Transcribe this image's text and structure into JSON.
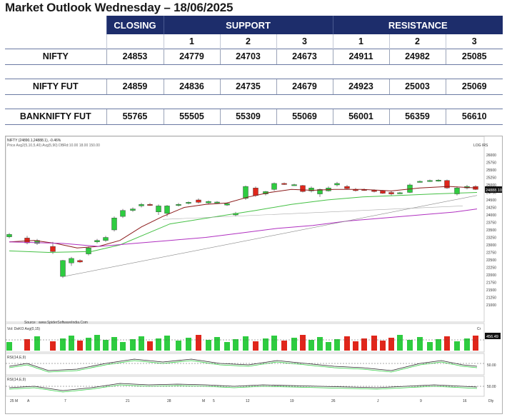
{
  "title": "Market Outlook Wednesday – 18/06/2025",
  "table": {
    "headers": {
      "closing": "CLOSING",
      "support": "SUPPORT",
      "resistance": "RESISTANCE"
    },
    "levels": [
      "1",
      "2",
      "3"
    ],
    "rows": [
      {
        "name": "NIFTY",
        "closing": "24853",
        "s1": "24779",
        "s2": "24703",
        "s3": "24673",
        "r1": "24911",
        "r2": "24982",
        "r3": "25085"
      },
      {
        "name": "NIFTY FUT",
        "closing": "24859",
        "s1": "24836",
        "s2": "24735",
        "s3": "24679",
        "r1": "24923",
        "r2": "25003",
        "r3": "25069"
      },
      {
        "name": "BANKNIFTY FUT",
        "closing": "55765",
        "s1": "55505",
        "s2": "55309",
        "s3": "55069",
        "r1": "56001",
        "r2": "56359",
        "r3": "56610"
      }
    ]
  },
  "chart": {
    "header": "NIFTY (24890.1,24888.1),  -0.46%",
    "indicators": "Price  Avg2(5,10,5,40)  Avg(5,90)  DBRd:10.00 18.00 150.00",
    "top_right": "LOG  IRS",
    "source": "Source : www.SpiderSoftwareIndia.Com",
    "price_label": "24888.10",
    "y_ticks": [
      "26000",
      "25750",
      "25500",
      "25250",
      "25000",
      "24750",
      "24500",
      "24250",
      "24000",
      "23750",
      "23500",
      "23250",
      "23000",
      "22750",
      "22500",
      "22250",
      "22000",
      "21750",
      "21500",
      "21250",
      "21000"
    ],
    "volume_label": "Vol: DeKO  Avg(0,15)",
    "volume_value": "456.49",
    "volume_unit": "Cr",
    "rsi_label": "RSI(14,E,9)",
    "rsi_value": "50.00",
    "rsi2_label": "RSI(14,E,9)",
    "rsi2_value": "50.00",
    "x_ticks": [
      "25 M",
      "A",
      "7",
      "21",
      "28",
      "M",
      "5",
      "12",
      "19",
      "26",
      "J",
      "9",
      "16",
      "Dly"
    ]
  }
}
